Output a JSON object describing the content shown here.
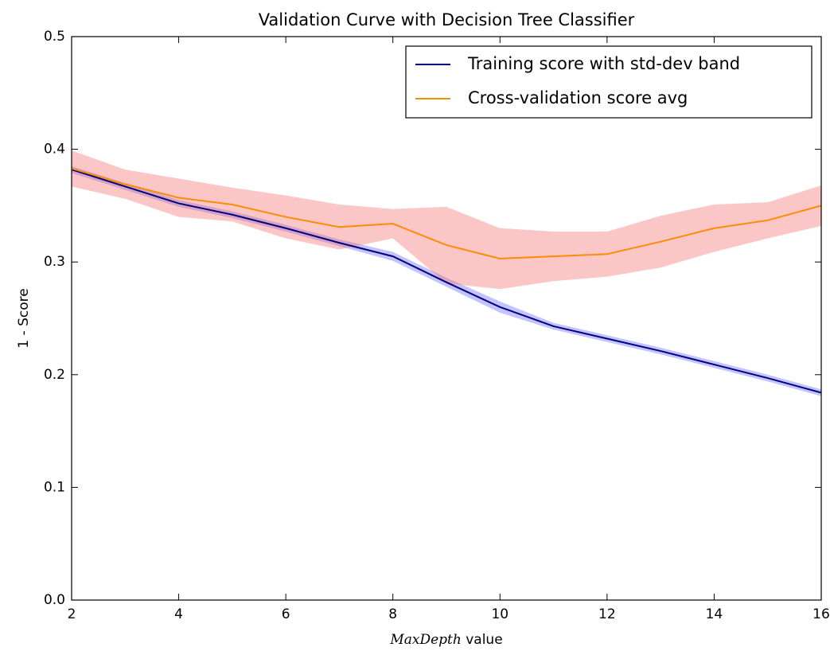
{
  "chart_data": {
    "type": "line",
    "title": "Validation Curve with Decision Tree Classifier",
    "xlabel": {
      "math": "MaxDepth",
      "text": "value"
    },
    "ylabel": "1 - Score",
    "x": [
      2,
      3,
      4,
      5,
      6,
      7,
      8,
      9,
      10,
      11,
      12,
      13,
      14,
      15,
      16
    ],
    "series": [
      {
        "name": "Training score with std-dev band",
        "color": "#00007f",
        "band_color": "#6a6aff",
        "values": [
          0.382,
          0.367,
          0.352,
          0.342,
          0.33,
          0.317,
          0.305,
          0.282,
          0.26,
          0.243,
          0.232,
          0.221,
          0.209,
          0.197,
          0.184
        ],
        "std": [
          0.003,
          0.003,
          0.003,
          0.003,
          0.003,
          0.003,
          0.004,
          0.004,
          0.005,
          0.003,
          0.003,
          0.003,
          0.003,
          0.003,
          0.003
        ]
      },
      {
        "name": "Cross-validation score avg",
        "color": "#ff8c00",
        "band_color": "#f27070",
        "values": [
          0.383,
          0.369,
          0.357,
          0.351,
          0.34,
          0.331,
          0.334,
          0.315,
          0.303,
          0.305,
          0.307,
          0.318,
          0.33,
          0.337,
          0.35
        ],
        "std": [
          0.016,
          0.013,
          0.017,
          0.015,
          0.019,
          0.02,
          0.013,
          0.034,
          0.027,
          0.022,
          0.02,
          0.023,
          0.021,
          0.016,
          0.018
        ]
      }
    ],
    "xlim": [
      2,
      16
    ],
    "ylim": [
      0,
      0.5
    ],
    "xticks": [
      2,
      4,
      6,
      8,
      10,
      12,
      14,
      16
    ],
    "yticks": [
      {
        "value": 0,
        "label": "0.0"
      },
      0.1,
      0.2,
      0.3,
      0.4,
      0.5
    ],
    "legend": "upper right",
    "grid": false
  }
}
